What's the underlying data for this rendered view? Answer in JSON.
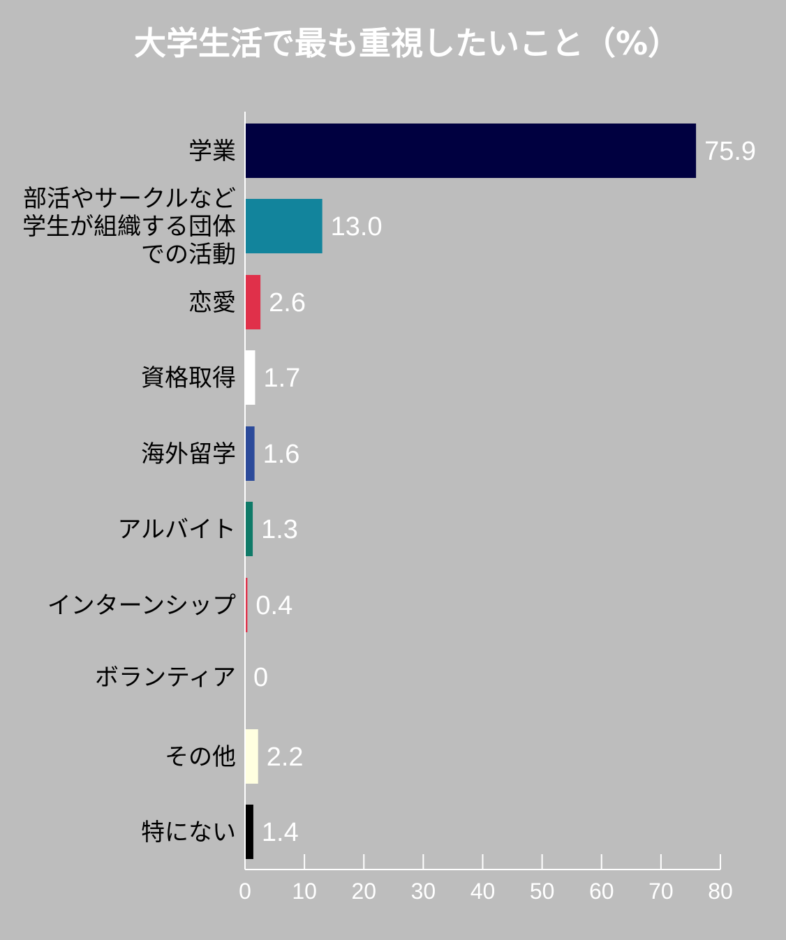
{
  "chart_data": {
    "type": "bar",
    "orientation": "horizontal",
    "title": "大学生活で最も重視したいこと（%）",
    "categories": [
      [
        "学業"
      ],
      [
        "部活やサークルなど",
        "学生が組織する団体",
        "での活動"
      ],
      [
        "恋愛"
      ],
      [
        "資格取得"
      ],
      [
        "海外留学"
      ],
      [
        "アルバイト"
      ],
      [
        "インターンシップ"
      ],
      [
        "ボランティア"
      ],
      [
        "その他"
      ],
      [
        "特にない"
      ]
    ],
    "values": [
      75.9,
      13.0,
      2.6,
      1.7,
      1.6,
      1.3,
      0.4,
      0,
      2.2,
      1.4
    ],
    "value_labels": [
      "75.9",
      "13.0",
      "2.6",
      "1.7",
      "1.6",
      "1.3",
      "0.4",
      "0",
      "2.2",
      "1.4"
    ],
    "colors": [
      "#000040",
      "#12849c",
      "#e0304a",
      "#ffffff",
      "#2b4a9a",
      "#0f7a68",
      "#e0304a",
      "#ffffff",
      "#ffffe0",
      "#000000"
    ],
    "xlim": [
      0,
      80
    ],
    "xticks": [
      "0",
      "10",
      "20",
      "30",
      "40",
      "50",
      "60",
      "70",
      "80"
    ],
    "grid": false,
    "legend": "none"
  },
  "colors": {
    "background": "#bdbdbd",
    "text": "#000000",
    "value_text": "#ffffff",
    "axis": "#ffffff"
  }
}
